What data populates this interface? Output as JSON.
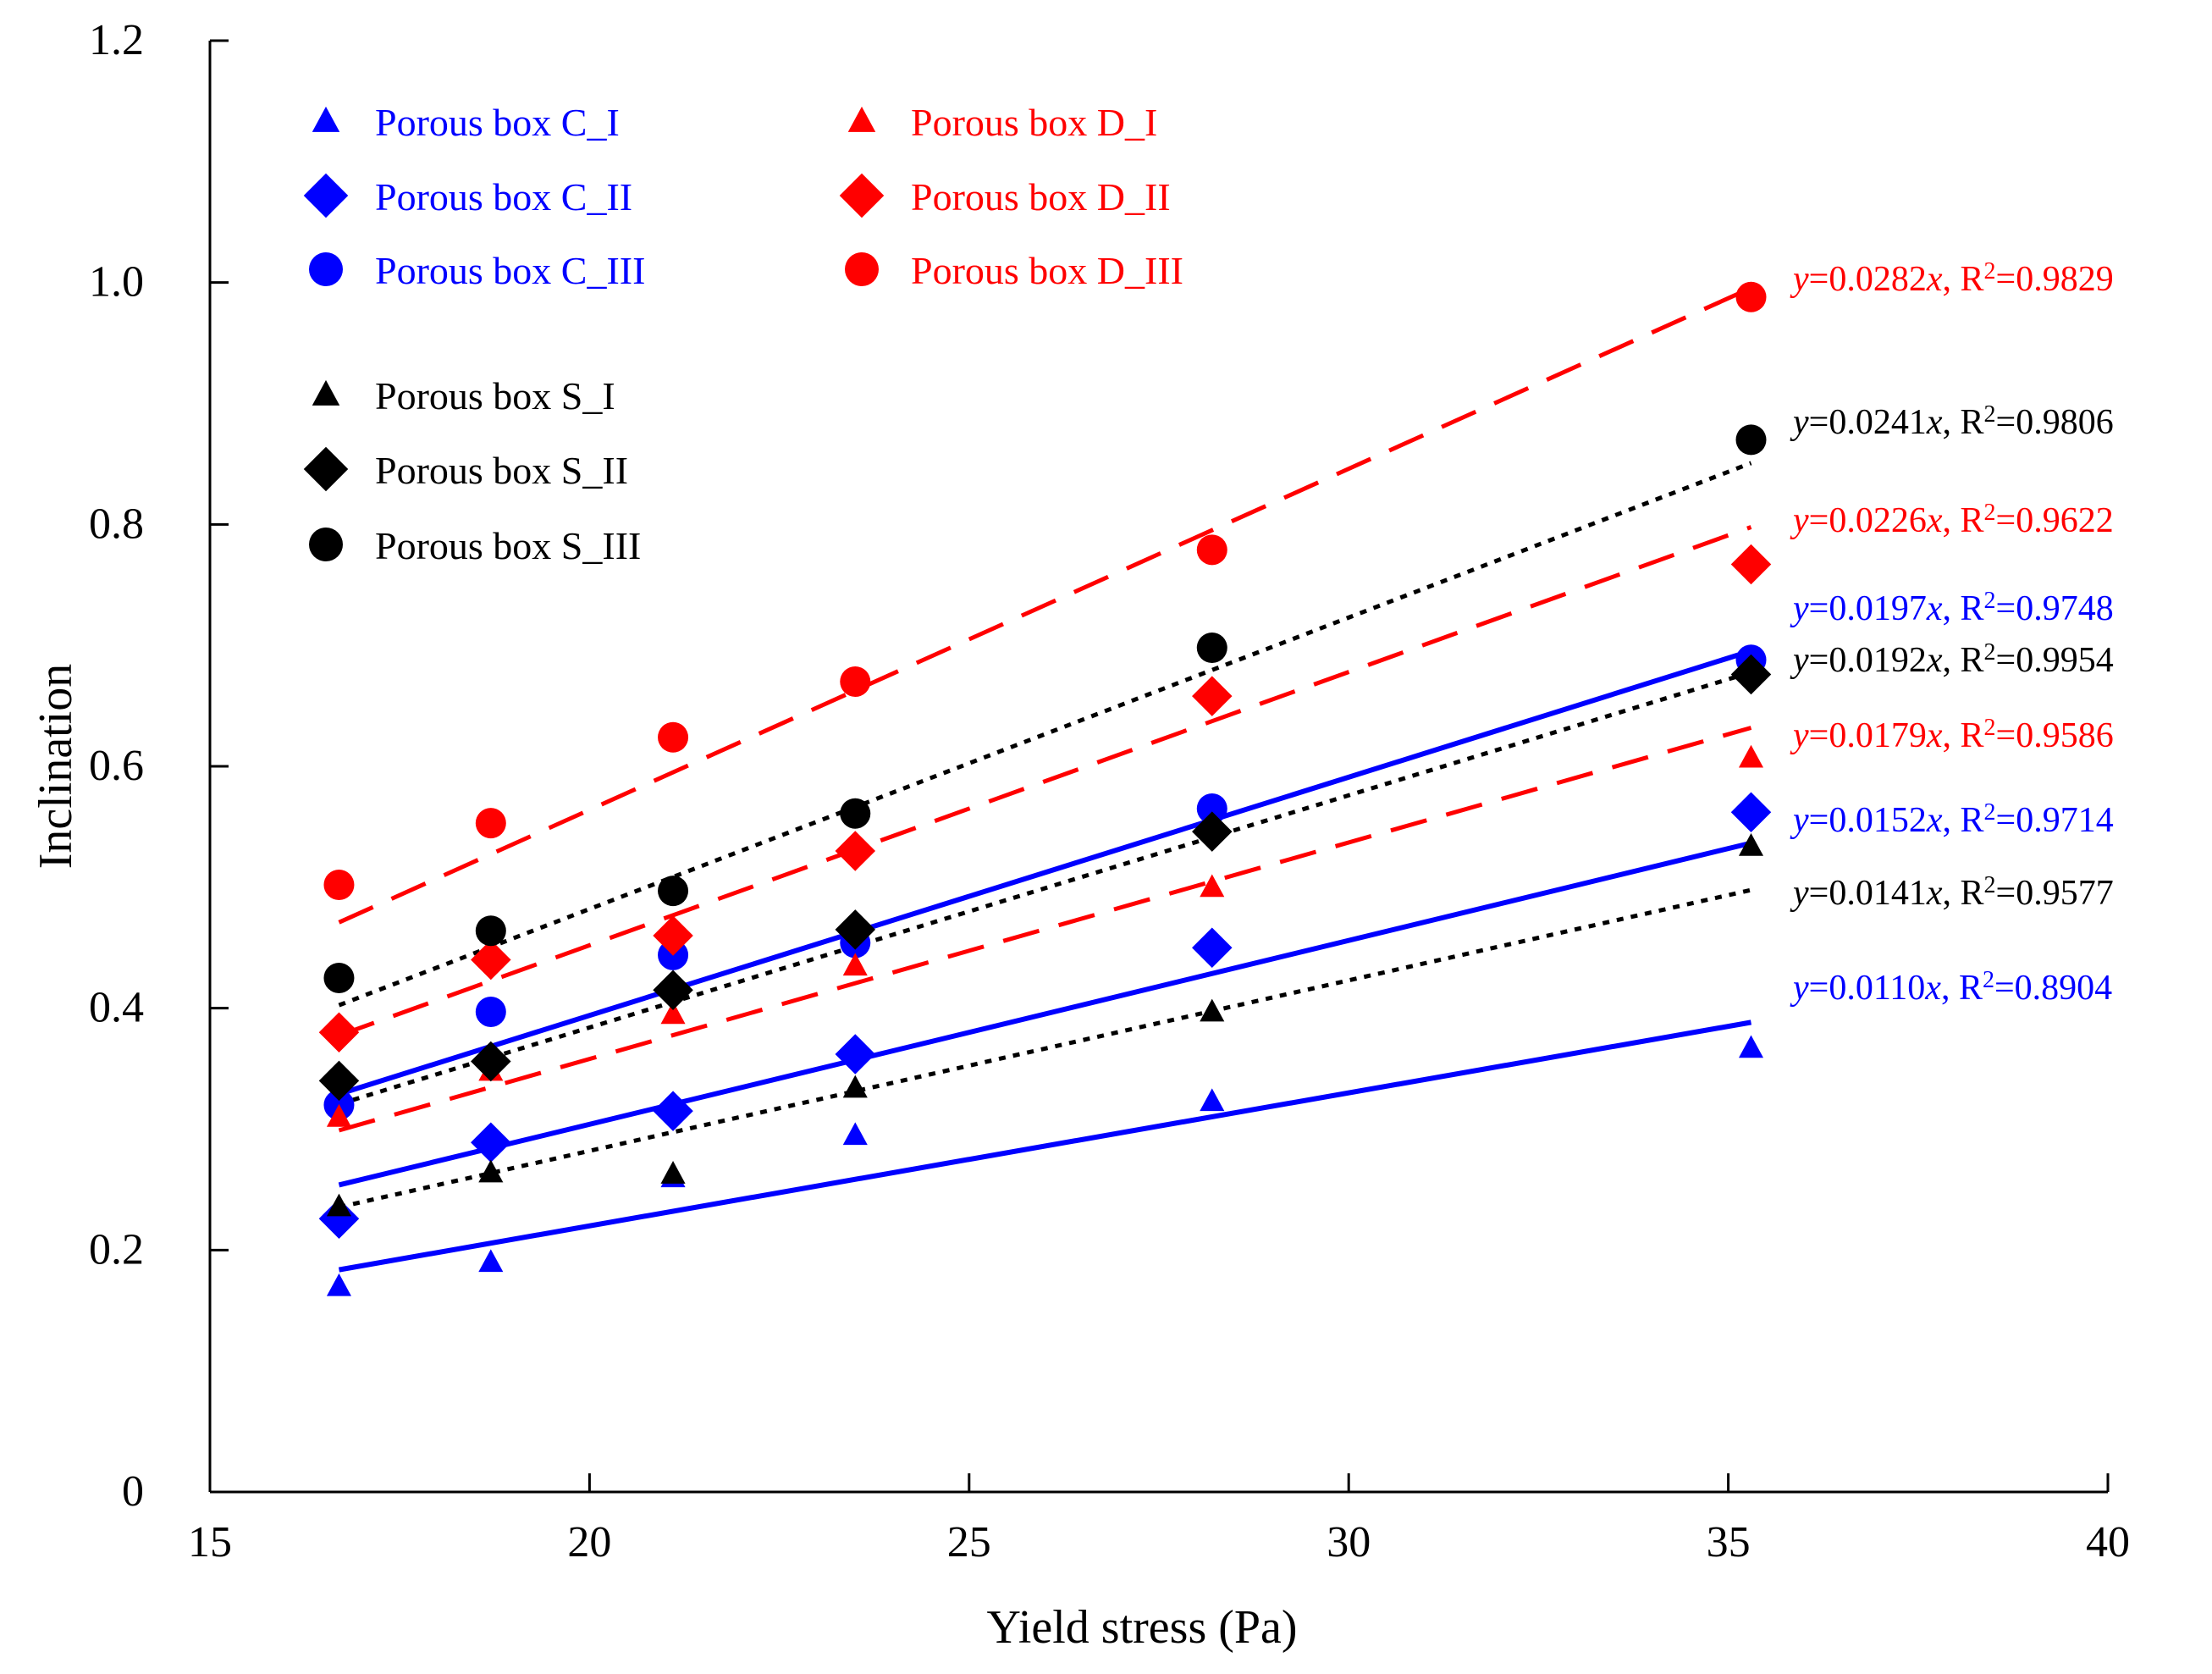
{
  "chart_data": {
    "type": "scatter",
    "title": "",
    "xlabel": "Yield stress (Pa)",
    "ylabel": "Inclination",
    "xlim": [
      15,
      40
    ],
    "ylim": [
      0,
      1.2
    ],
    "xticks": [
      "15",
      "20",
      "25",
      "30",
      "35",
      "40"
    ],
    "yticks": [
      "0",
      "0.2",
      "0.4",
      "0.6",
      "0.8",
      "1.0",
      "1.2"
    ],
    "x": [
      16.7,
      18.7,
      21.1,
      23.5,
      28.2,
      35.3
    ],
    "colors": {
      "C": "#0000ff",
      "D": "#ff0000",
      "S": "#000000"
    },
    "series": [
      {
        "name": "Porous box C_I",
        "group": "C",
        "marker": "triangle",
        "values": [
          0.17,
          0.19,
          0.26,
          0.295,
          0.323,
          0.367
        ],
        "fit": {
          "slope": 0.011,
          "label_y": "y",
          "label_eq": "=0.0110",
          "label_x": "x",
          "label_r": ", R",
          "label_exp": "2",
          "label_rv": "=0.8904",
          "dash": "solid"
        }
      },
      {
        "name": "Porous box C_II",
        "group": "C",
        "marker": "diamond",
        "values": [
          0.226,
          0.289,
          0.315,
          0.362,
          0.45,
          0.562
        ],
        "fit": {
          "slope": 0.0152,
          "label_y": "y",
          "label_eq": "=0.0152",
          "label_x": "x",
          "label_r": ", R",
          "label_exp": "2",
          "label_rv": "=0.9714",
          "dash": "solid"
        }
      },
      {
        "name": "Porous box C_III",
        "group": "C",
        "marker": "circle",
        "values": [
          0.32,
          0.397,
          0.444,
          0.454,
          0.565,
          0.688
        ],
        "fit": {
          "slope": 0.0197,
          "label_y": "y",
          "label_eq": "=0.0197",
          "label_x": "x",
          "label_r": ", R",
          "label_exp": "2",
          "label_rv": "=0.9748",
          "dash": "solid"
        }
      },
      {
        "name": "Porous box D_I",
        "group": "D",
        "marker": "triangle",
        "values": [
          0.31,
          0.348,
          0.395,
          0.435,
          0.5,
          0.607
        ],
        "fit": {
          "slope": 0.0179,
          "label_y": "y",
          "label_eq": "=0.0179",
          "label_x": "x",
          "label_r": ", R",
          "label_exp": "2",
          "label_rv": "=0.9586",
          "dash": "long"
        }
      },
      {
        "name": "Porous box D_II",
        "group": "D",
        "marker": "diamond",
        "values": [
          0.38,
          0.44,
          0.46,
          0.53,
          0.658,
          0.767
        ],
        "fit": {
          "slope": 0.0226,
          "label_y": "y",
          "label_eq": "=0.0226",
          "label_x": "x",
          "label_r": ", R",
          "label_exp": "2",
          "label_rv": "=0.9622",
          "dash": "long"
        }
      },
      {
        "name": "Porous box D_III",
        "group": "D",
        "marker": "circle",
        "values": [
          0.502,
          0.553,
          0.624,
          0.67,
          0.779,
          0.988
        ],
        "fit": {
          "slope": 0.0282,
          "label_y": "y",
          "label_eq": "=0.0282",
          "label_x": "x",
          "label_r": ", R",
          "label_exp": "2",
          "label_rv": "=0.9829",
          "dash": "long"
        }
      },
      {
        "name": "Porous box S_I",
        "group": "S",
        "marker": "triangle",
        "values": [
          0.236,
          0.264,
          0.263,
          0.334,
          0.397,
          0.534
        ],
        "fit": {
          "slope": 0.0141,
          "label_y": "y",
          "label_eq": "=0.0141",
          "label_x": "x",
          "label_r": ", R",
          "label_exp": "2",
          "label_rv": "=0.9577",
          "dash": "dot"
        }
      },
      {
        "name": "Porous box S_II",
        "group": "S",
        "marker": "diamond",
        "values": [
          0.34,
          0.356,
          0.415,
          0.465,
          0.546,
          0.676
        ],
        "fit": {
          "slope": 0.0192,
          "label_y": "y",
          "label_eq": "=0.0192",
          "label_x": "x",
          "label_r": ", R",
          "label_exp": "2",
          "label_rv": "=0.9954",
          "dash": "dot"
        }
      },
      {
        "name": "Porous box S_III",
        "group": "S",
        "marker": "circle",
        "values": [
          0.425,
          0.464,
          0.497,
          0.561,
          0.698,
          0.87
        ],
        "fit": {
          "slope": 0.0241,
          "label_y": "y",
          "label_eq": "=0.0241",
          "label_x": "x",
          "label_r": ", R",
          "label_exp": "2",
          "label_rv": "=0.9806",
          "dash": "dot"
        }
      }
    ],
    "legend_position": "top-left"
  }
}
